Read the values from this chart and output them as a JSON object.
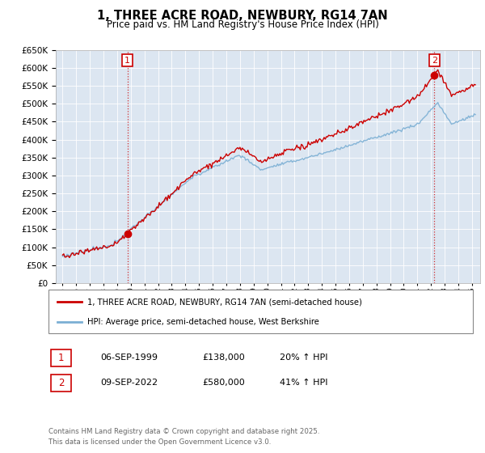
{
  "title": "1, THREE ACRE ROAD, NEWBURY, RG14 7AN",
  "subtitle": "Price paid vs. HM Land Registry's House Price Index (HPI)",
  "legend_line1": "1, THREE ACRE ROAD, NEWBURY, RG14 7AN (semi-detached house)",
  "legend_line2": "HPI: Average price, semi-detached house, West Berkshire",
  "annotation1_label": "1",
  "annotation1_date": "06-SEP-1999",
  "annotation1_price": "£138,000",
  "annotation1_hpi": "20% ↑ HPI",
  "annotation2_label": "2",
  "annotation2_date": "09-SEP-2022",
  "annotation2_price": "£580,000",
  "annotation2_hpi": "41% ↑ HPI",
  "footer": "Contains HM Land Registry data © Crown copyright and database right 2025.\nThis data is licensed under the Open Government Licence v3.0.",
  "price_color": "#cc0000",
  "hpi_color": "#7bafd4",
  "background_color": "#dce6f1",
  "ylim": [
    0,
    650000
  ],
  "ytick_step": 50000,
  "purchase1_year_idx": 57,
  "purchase1_value": 138000,
  "purchase2_year_idx": 327,
  "purchase2_value": 580000,
  "xstart": 1995.0,
  "xend": 2025.25,
  "n_points": 364
}
